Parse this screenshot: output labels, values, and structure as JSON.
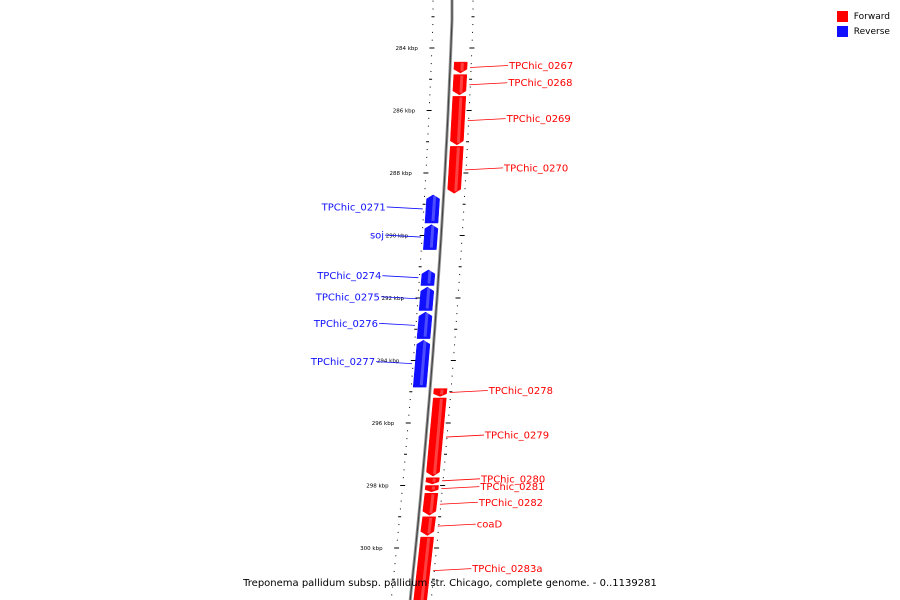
{
  "legend": {
    "forward_label": "Forward",
    "reverse_label": "Reverse",
    "forward_color": "#ff0000",
    "reverse_color": "#1010ff"
  },
  "caption": "Treponema pallidum subsp. pallidum str. Chicago, complete genome. - 0..1139281",
  "scale": {
    "unit": "kbp",
    "view_range_kbp": [
      282.5,
      301.8
    ],
    "major_ticks": [
      "284 kbp",
      "286 kbp",
      "288 kbp",
      "290 kbp",
      "292 kbp",
      "294 kbp",
      "296 kbp",
      "298 kbp",
      "300 kbp"
    ],
    "major_tick_values": [
      284,
      286,
      288,
      290,
      292,
      294,
      296,
      298,
      300
    ]
  },
  "genes": [
    {
      "label": "TPChic_0267",
      "strand": "forward",
      "start": 284.45,
      "end": 284.8
    },
    {
      "label": "TPChic_0268",
      "strand": "forward",
      "start": 284.85,
      "end": 285.5
    },
    {
      "label": "TPChic_0269",
      "strand": "forward",
      "start": 285.55,
      "end": 287.1
    },
    {
      "label": "TPChic_0270",
      "strand": "forward",
      "start": 287.15,
      "end": 288.65
    },
    {
      "label": "TPChic_0271",
      "strand": "reverse",
      "start": 288.7,
      "end": 289.6
    },
    {
      "label": "soj",
      "strand": "reverse",
      "start": 289.65,
      "end": 290.45
    },
    {
      "label": "TPChic_0274",
      "strand": "reverse",
      "start": 291.1,
      "end": 291.6
    },
    {
      "label": "TPChic_0275",
      "strand": "reverse",
      "start": 291.65,
      "end": 292.4
    },
    {
      "label": "TPChic_0276",
      "strand": "reverse",
      "start": 292.45,
      "end": 293.3
    },
    {
      "label": "TPChic_0277",
      "strand": "reverse",
      "start": 293.35,
      "end": 294.85
    },
    {
      "label": "TPChic_0278",
      "strand": "forward",
      "start": 294.9,
      "end": 295.15
    },
    {
      "label": "TPChic_0279",
      "strand": "forward",
      "start": 295.2,
      "end": 297.7
    },
    {
      "label": "TPChic_0280",
      "strand": "forward",
      "start": 297.75,
      "end": 297.95
    },
    {
      "label": "TPChic_0281",
      "strand": "forward",
      "start": 298.0,
      "end": 298.2
    },
    {
      "label": "TPChic_0282",
      "strand": "forward",
      "start": 298.25,
      "end": 298.95
    },
    {
      "label": "coaD",
      "strand": "forward",
      "start": 299.0,
      "end": 299.6
    },
    {
      "label": "TPChic_0283a",
      "strand": "forward",
      "start": 299.65,
      "end": 301.8
    }
  ]
}
